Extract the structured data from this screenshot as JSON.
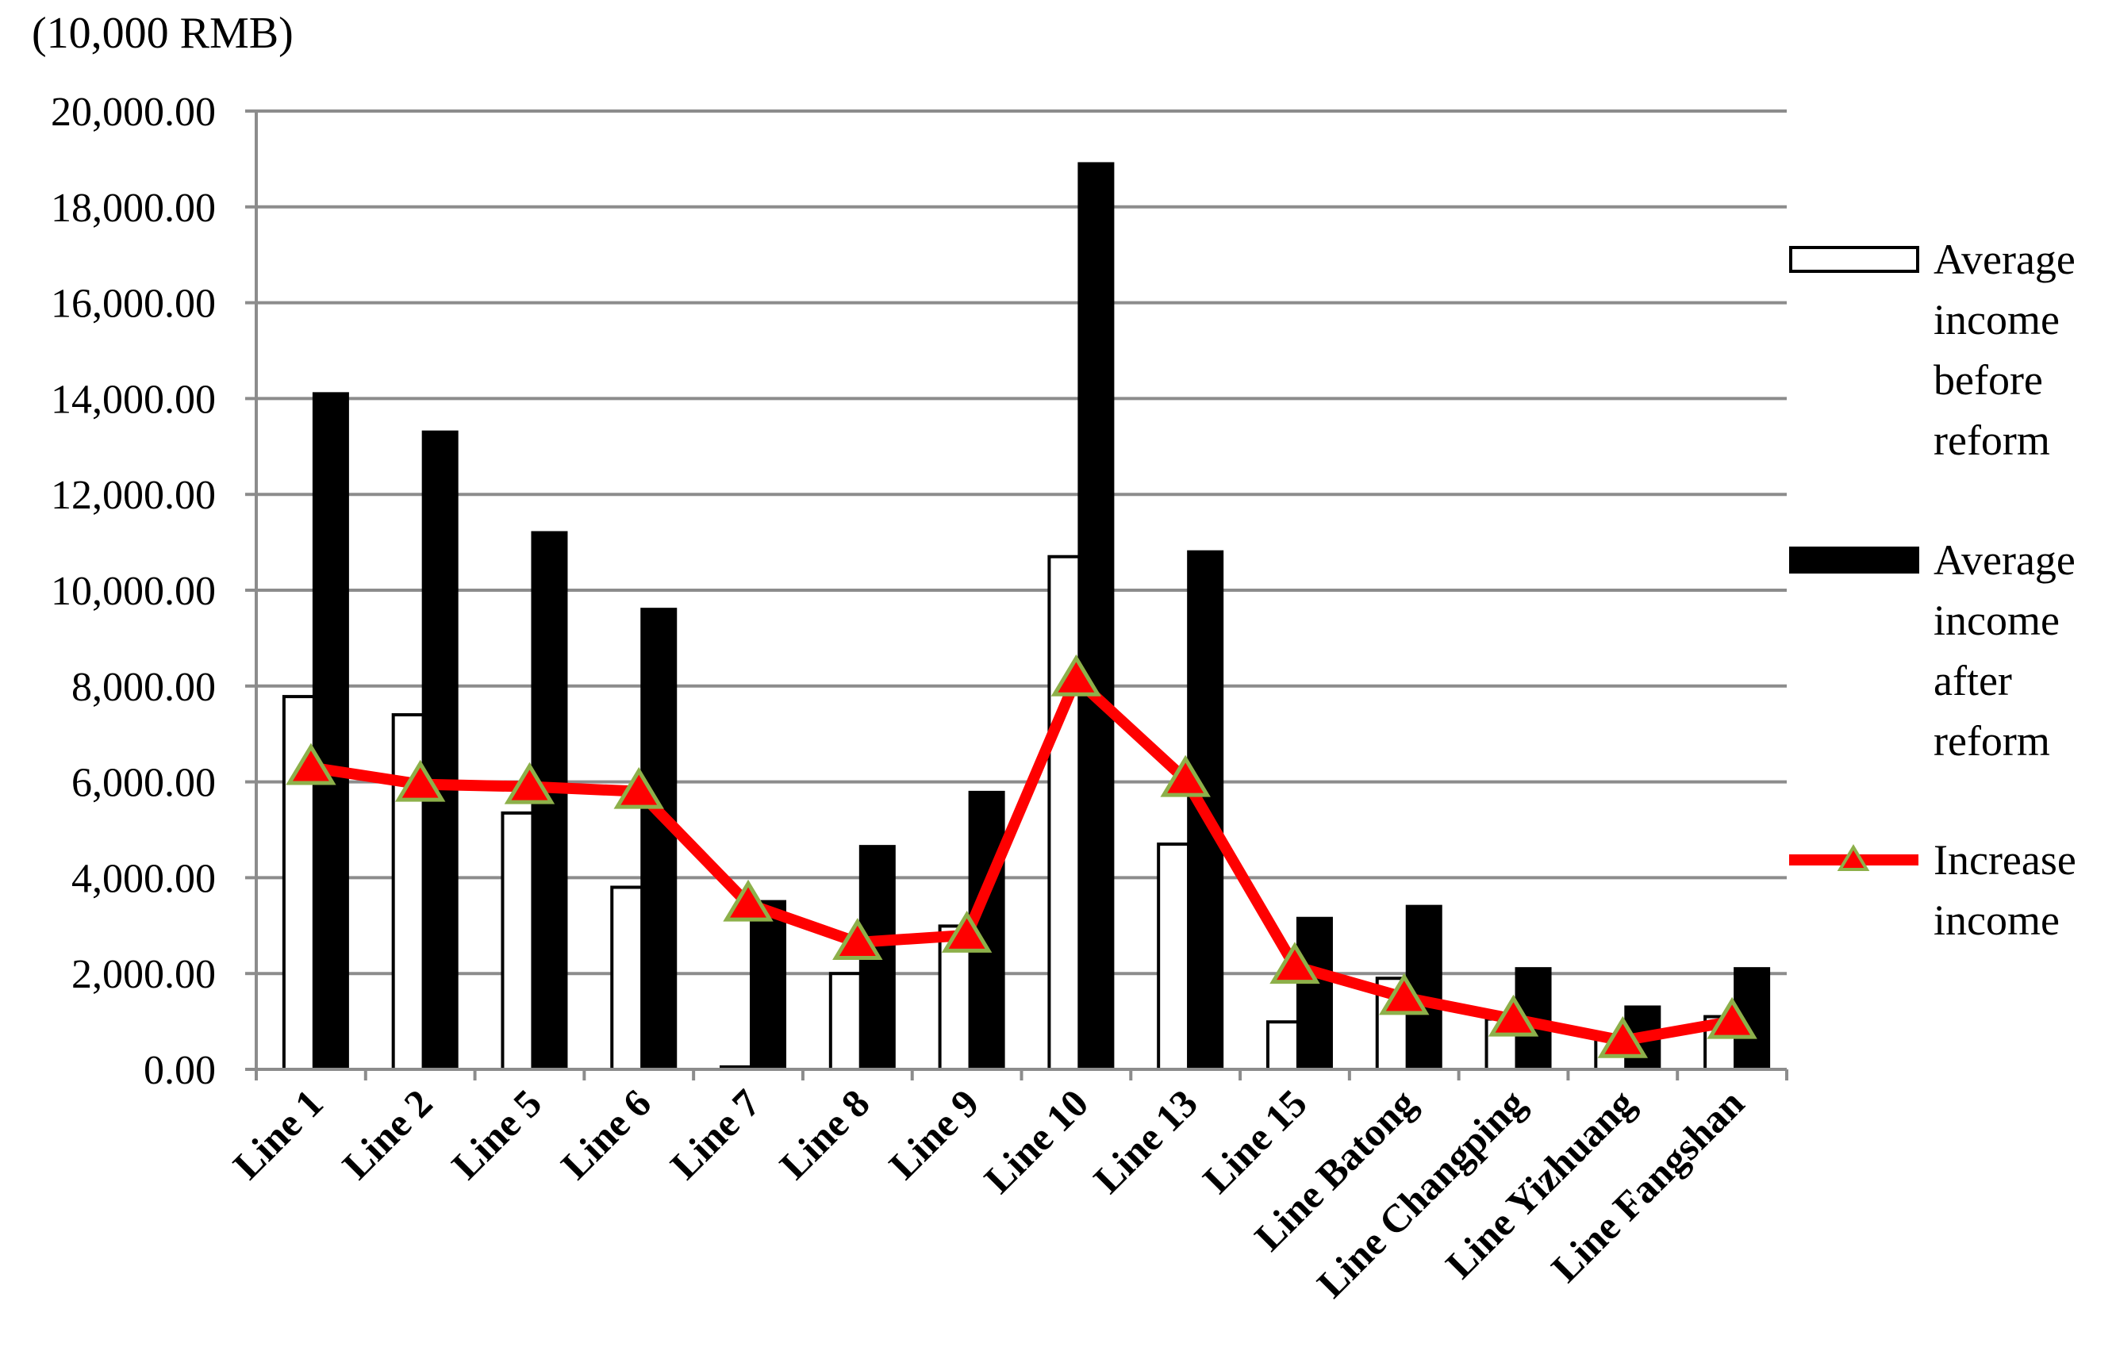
{
  "chart_data": {
    "type": "bar_line",
    "y_axis_label": "(10,000 RMB)",
    "categories": [
      "Line 1",
      "Line 2",
      "Line 5",
      "Line 6",
      "Line 7",
      "Line 8",
      "Line 9",
      "Line 10",
      "Line 13",
      "Line 15",
      "Line Batong",
      "Line Changping",
      "Line Yizhuang",
      "Line Fangshan"
    ],
    "series": [
      {
        "name": "Average income before reform",
        "type": "bar",
        "color": "#ffffff",
        "values": [
          7780,
          7400,
          5350,
          3800,
          50,
          2000,
          2990,
          10700,
          4700,
          990,
          1900,
          1050,
          700,
          1100
        ]
      },
      {
        "name": "Average income after reform",
        "type": "bar",
        "color": "#000000",
        "values": [
          14100,
          13300,
          11200,
          9600,
          3500,
          4650,
          5780,
          18900,
          10800,
          3150,
          3400,
          2100,
          1300,
          2100
        ]
      },
      {
        "name": "Increase income",
        "type": "line",
        "color": "#ff0000",
        "marker_color": "#8db04a",
        "values": [
          6300,
          5950,
          5900,
          5800,
          3450,
          2650,
          2800,
          8150,
          6050,
          2150,
          1500,
          1050,
          600,
          1000
        ]
      }
    ],
    "ylim": [
      0,
      20000
    ],
    "yticks": [
      {
        "value": 0,
        "label": "0.00"
      },
      {
        "value": 2000,
        "label": "2,000.00"
      },
      {
        "value": 4000,
        "label": "4,000.00"
      },
      {
        "value": 6000,
        "label": "6,000.00"
      },
      {
        "value": 8000,
        "label": "8,000.00"
      },
      {
        "value": 10000,
        "label": "10,000.00"
      },
      {
        "value": 12000,
        "label": "12,000.00"
      },
      {
        "value": 14000,
        "label": "14,000.00"
      },
      {
        "value": 16000,
        "label": "16,000.00"
      },
      {
        "value": 18000,
        "label": "18,000.00"
      },
      {
        "value": 20000,
        "label": "20,000.00"
      }
    ],
    "grid": true,
    "legend": "right"
  }
}
